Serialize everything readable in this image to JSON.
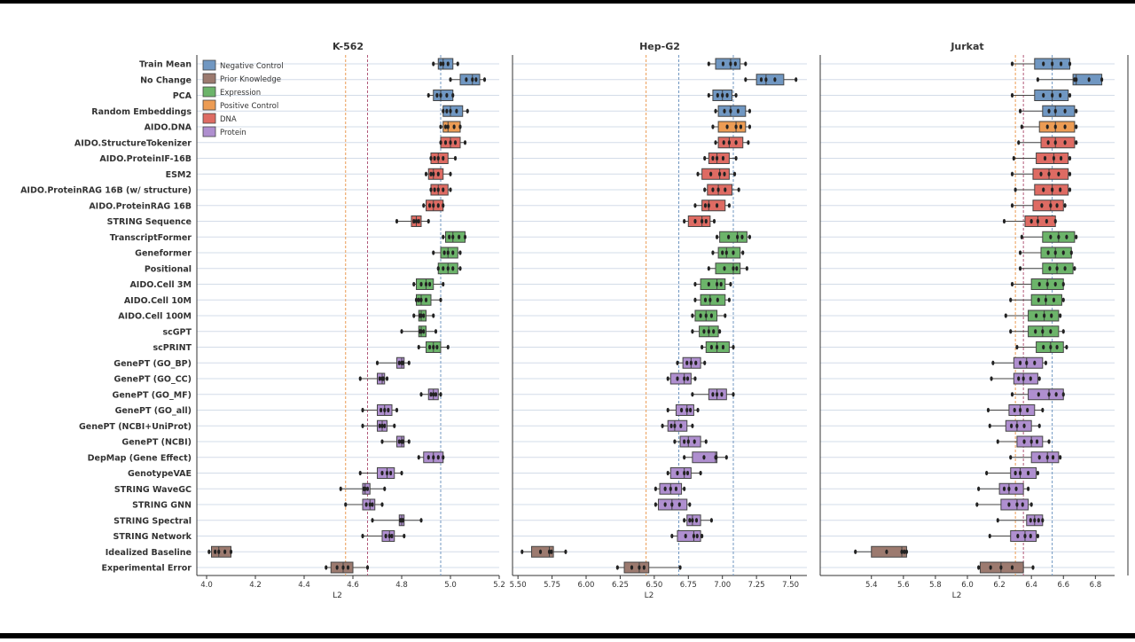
{
  "chart_data": {
    "type": "boxplot",
    "orientation": "horizontal",
    "grid": true,
    "legend_placement": "top-left (first panel)",
    "categories": [
      "Train Mean",
      "No Change",
      "PCA",
      "Random Embeddings",
      "AIDO.DNA",
      "AIDO.StructureTokenizer",
      "AIDO.ProteinIF-16B",
      "ESM2",
      "AIDO.ProteinRAG 16B (w/ structure)",
      "AIDO.ProteinRAG 16B",
      "STRING Sequence",
      "TranscriptFormer",
      "Geneformer",
      "Positional",
      "AIDO.Cell 3M",
      "AIDO.Cell 10M",
      "AIDO.Cell 100M",
      "scGPT",
      "scPRINT",
      "GenePT (GO_BP)",
      "GenePT (GO_CC)",
      "GenePT (GO_MF)",
      "GenePT (GO_all)",
      "GenePT (NCBI+UniProt)",
      "GenePT (NCBI)",
      "DepMap (Gene Effect)",
      "GenotypeVAE",
      "STRING WaveGC",
      "STRING GNN",
      "STRING Spectral",
      "STRING Network",
      "Idealized Baseline",
      "Experimental Error"
    ],
    "groups": [
      0,
      0,
      0,
      0,
      1,
      3,
      3,
      3,
      3,
      3,
      3,
      2,
      2,
      2,
      2,
      2,
      2,
      2,
      2,
      4,
      4,
      4,
      4,
      4,
      4,
      4,
      4,
      4,
      4,
      4,
      4,
      5,
      5
    ],
    "legend": [
      {
        "name": "Negative Control",
        "color": "#7097c2"
      },
      {
        "name": "Positive Control",
        "color": "#ec9c54"
      },
      {
        "name": "Expression",
        "color": "#6cb46a"
      },
      {
        "name": "DNA",
        "color": "#de6b63"
      },
      {
        "name": "Protein",
        "color": "#af8fcf"
      },
      {
        "name": "Prior Knowledge",
        "color": "#9c7a6f"
      }
    ],
    "legend_order": [
      0,
      5,
      2,
      1,
      3,
      4
    ],
    "panels": [
      {
        "title": "K-562",
        "xlabel": "L2",
        "xlim": [
          3.96,
          5.2
        ],
        "xticks": [
          4.0,
          4.2,
          4.4,
          4.6,
          4.8,
          5.0,
          5.2
        ],
        "xtick_labels": [
          "4.0",
          "4.2",
          "4.4",
          "4.6",
          "4.8",
          "5.0",
          "5.2"
        ],
        "vlines": [
          {
            "x": 4.57,
            "color": "#ec9c54"
          },
          {
            "x": 4.66,
            "color": "#b25a7a"
          },
          {
            "x": 4.96,
            "color": "#7097c2"
          }
        ],
        "boxes": [
          [
            4.93,
            4.95,
            4.97,
            5.01,
            5.03
          ],
          [
            5.0,
            5.04,
            5.09,
            5.12,
            5.14
          ],
          [
            4.91,
            4.93,
            4.96,
            5.01,
            5.01
          ],
          [
            4.97,
            4.97,
            5.0,
            5.05,
            5.07
          ],
          [
            4.96,
            4.97,
            4.99,
            5.04,
            5.04
          ],
          [
            4.96,
            4.96,
            5.0,
            5.04,
            5.06
          ],
          [
            4.92,
            4.92,
            4.95,
            4.99,
            5.02
          ],
          [
            4.9,
            4.91,
            4.93,
            4.97,
            5.0
          ],
          [
            4.92,
            4.92,
            4.95,
            4.99,
            5.0
          ],
          [
            4.89,
            4.9,
            4.93,
            4.97,
            4.97
          ],
          [
            4.78,
            4.84,
            4.86,
            4.88,
            4.91
          ],
          [
            4.97,
            4.98,
            5.01,
            5.06,
            5.06
          ],
          [
            4.93,
            4.96,
            4.99,
            5.03,
            5.04
          ],
          [
            4.95,
            4.95,
            4.99,
            5.03,
            5.04
          ],
          [
            4.85,
            4.86,
            4.9,
            4.93,
            4.97
          ],
          [
            4.86,
            4.86,
            4.88,
            4.92,
            4.96
          ],
          [
            4.85,
            4.87,
            4.88,
            4.9,
            4.93
          ],
          [
            4.8,
            4.87,
            4.88,
            4.9,
            4.94
          ],
          [
            4.87,
            4.9,
            4.93,
            4.96,
            4.99
          ],
          [
            4.7,
            4.78,
            4.8,
            4.81,
            4.83
          ],
          [
            4.63,
            4.7,
            4.72,
            4.73,
            4.74
          ],
          [
            4.88,
            4.91,
            4.93,
            4.95,
            4.96
          ],
          [
            4.64,
            4.7,
            4.73,
            4.76,
            4.78
          ],
          [
            4.64,
            4.7,
            4.72,
            4.74,
            4.77
          ],
          [
            4.72,
            4.78,
            4.8,
            4.81,
            4.83
          ],
          [
            4.87,
            4.89,
            4.93,
            4.97,
            4.97
          ],
          [
            4.63,
            4.7,
            4.74,
            4.77,
            4.8
          ],
          [
            4.55,
            4.64,
            4.65,
            4.67,
            4.73
          ],
          [
            4.57,
            4.64,
            4.67,
            4.69,
            4.72
          ],
          [
            4.68,
            4.79,
            4.8,
            4.81,
            4.88
          ],
          [
            4.64,
            4.72,
            4.75,
            4.77,
            4.81
          ],
          [
            4.01,
            4.02,
            4.05,
            4.1,
            4.1
          ],
          [
            4.49,
            4.51,
            4.56,
            4.6,
            4.66
          ]
        ]
      },
      {
        "title": "Hep-G2",
        "xlabel": "L2",
        "xlim": [
          5.46,
          7.62
        ],
        "xticks": [
          5.5,
          5.75,
          6.0,
          6.25,
          6.5,
          6.75,
          7.0,
          7.25,
          7.5
        ],
        "xtick_labels": [
          "5.50",
          "5.75",
          "6.00",
          "6.25",
          "6.50",
          "6.75",
          "7.00",
          "7.25",
          "7.50"
        ],
        "vlines": [
          {
            "x": 6.44,
            "color": "#ec9c54"
          },
          {
            "x": 6.68,
            "color": "#7097c2"
          },
          {
            "x": 7.08,
            "color": "#7097c2"
          }
        ],
        "boxes": [
          [
            6.9,
            6.95,
            7.06,
            7.13,
            7.17
          ],
          [
            7.17,
            7.25,
            7.32,
            7.45,
            7.54
          ],
          [
            6.9,
            6.93,
            7.0,
            7.07,
            7.1
          ],
          [
            6.95,
            6.97,
            7.06,
            7.17,
            7.2
          ],
          [
            6.93,
            6.97,
            7.1,
            7.17,
            7.2
          ],
          [
            6.95,
            6.97,
            7.05,
            7.15,
            7.19
          ],
          [
            6.87,
            6.9,
            6.96,
            7.05,
            7.1
          ],
          [
            6.82,
            6.85,
            6.98,
            7.05,
            7.09
          ],
          [
            6.87,
            6.89,
            6.97,
            7.07,
            7.12
          ],
          [
            6.8,
            6.85,
            6.9,
            7.02,
            7.05
          ],
          [
            6.72,
            6.75,
            6.85,
            6.91,
            6.94
          ],
          [
            6.96,
            6.98,
            7.11,
            7.18,
            7.2
          ],
          [
            6.93,
            6.97,
            7.03,
            7.13,
            7.15
          ],
          [
            6.9,
            6.95,
            7.08,
            7.13,
            7.18
          ],
          [
            6.8,
            6.84,
            6.96,
            7.02,
            7.06
          ],
          [
            6.8,
            6.84,
            6.91,
            7.02,
            7.05
          ],
          [
            6.78,
            6.8,
            6.88,
            6.96,
            7.02
          ],
          [
            6.78,
            6.83,
            6.9,
            6.97,
            6.98
          ],
          [
            6.85,
            6.88,
            6.96,
            7.05,
            7.08
          ],
          [
            6.67,
            6.71,
            6.77,
            6.84,
            6.87
          ],
          [
            6.6,
            6.62,
            6.72,
            6.77,
            6.8
          ],
          [
            6.78,
            6.9,
            6.96,
            7.03,
            7.08
          ],
          [
            6.6,
            6.66,
            6.74,
            6.79,
            6.82
          ],
          [
            6.56,
            6.6,
            6.65,
            6.74,
            6.78
          ],
          [
            6.65,
            6.69,
            6.75,
            6.84,
            6.88
          ],
          [
            6.72,
            6.78,
            6.95,
            6.96,
            7.03
          ],
          [
            6.6,
            6.62,
            6.72,
            6.77,
            6.84
          ],
          [
            6.51,
            6.54,
            6.62,
            6.7,
            6.72
          ],
          [
            6.51,
            6.53,
            6.63,
            6.74,
            6.76
          ],
          [
            6.72,
            6.74,
            6.78,
            6.84,
            6.92
          ],
          [
            6.63,
            6.67,
            6.79,
            6.84,
            6.85
          ],
          [
            5.53,
            5.6,
            5.73,
            5.76,
            5.85
          ],
          [
            6.23,
            6.28,
            6.39,
            6.46,
            6.69
          ]
        ]
      },
      {
        "title": "Jurkat",
        "xlabel": "L2",
        "xlim": [
          5.08,
          6.92
        ],
        "xticks": [
          5.4,
          5.6,
          5.8,
          6.0,
          6.2,
          6.4,
          6.6,
          6.8
        ],
        "xtick_labels": [
          "5.4",
          "5.6",
          "5.8",
          "6.0",
          "6.2",
          "6.4",
          "6.6",
          "6.8"
        ],
        "vlines": [
          {
            "x": 6.3,
            "color": "#ec9c54"
          },
          {
            "x": 6.35,
            "color": "#b25a7a"
          },
          {
            "x": 6.53,
            "color": "#7097c2"
          }
        ],
        "boxes": [
          [
            6.28,
            6.42,
            6.53,
            6.64,
            6.64
          ],
          [
            6.44,
            6.66,
            6.68,
            6.84,
            6.84
          ],
          [
            6.28,
            6.42,
            6.53,
            6.63,
            6.64
          ],
          [
            6.33,
            6.47,
            6.55,
            6.67,
            6.68
          ],
          [
            6.34,
            6.45,
            6.55,
            6.67,
            6.68
          ],
          [
            6.32,
            6.46,
            6.55,
            6.67,
            6.68
          ],
          [
            6.29,
            6.43,
            6.54,
            6.63,
            6.64
          ],
          [
            6.28,
            6.41,
            6.51,
            6.63,
            6.64
          ],
          [
            6.3,
            6.42,
            6.53,
            6.63,
            6.64
          ],
          [
            6.28,
            6.41,
            6.52,
            6.6,
            6.61
          ],
          [
            6.23,
            6.36,
            6.44,
            6.55,
            6.55
          ],
          [
            6.34,
            6.47,
            6.57,
            6.67,
            6.68
          ],
          [
            6.33,
            6.46,
            6.55,
            6.65,
            6.65
          ],
          [
            6.33,
            6.47,
            6.56,
            6.66,
            6.67
          ],
          [
            6.28,
            6.4,
            6.5,
            6.6,
            6.6
          ],
          [
            6.27,
            6.4,
            6.49,
            6.59,
            6.6
          ],
          [
            6.24,
            6.38,
            6.48,
            6.57,
            6.58
          ],
          [
            6.27,
            6.38,
            6.47,
            6.57,
            6.6
          ],
          [
            6.31,
            6.43,
            6.52,
            6.6,
            6.62
          ],
          [
            6.16,
            6.29,
            6.37,
            6.47,
            6.49
          ],
          [
            6.15,
            6.29,
            6.35,
            6.44,
            6.45
          ],
          [
            6.28,
            6.38,
            6.51,
            6.6,
            6.6
          ],
          [
            6.13,
            6.26,
            6.33,
            6.42,
            6.47
          ],
          [
            6.14,
            6.24,
            6.31,
            6.4,
            6.45
          ],
          [
            6.19,
            6.31,
            6.4,
            6.47,
            6.51
          ],
          [
            6.27,
            6.4,
            6.5,
            6.57,
            6.58
          ],
          [
            6.12,
            6.27,
            6.33,
            6.43,
            6.44
          ],
          [
            6.07,
            6.2,
            6.26,
            6.35,
            6.38
          ],
          [
            6.06,
            6.21,
            6.31,
            6.38,
            6.4
          ],
          [
            6.19,
            6.37,
            6.42,
            6.47,
            6.47
          ],
          [
            6.14,
            6.27,
            6.36,
            6.43,
            6.44
          ],
          [
            5.3,
            5.4,
            5.59,
            5.62,
            5.62
          ],
          [
            6.07,
            6.08,
            6.21,
            6.35,
            6.41
          ]
        ]
      }
    ]
  }
}
